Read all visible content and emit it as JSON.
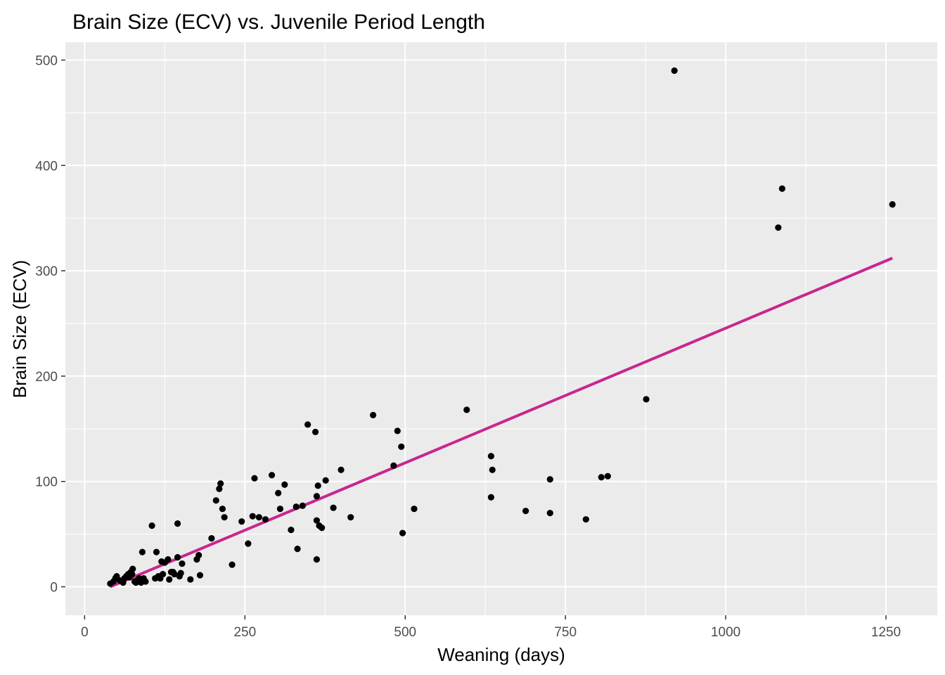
{
  "chart_data": {
    "type": "scatter",
    "title": "Brain Size (ECV) vs. Juvenile Period Length",
    "xlabel": "Weaning (days)",
    "ylabel": "Brain Size (ECV)",
    "xlim": [
      -30,
      1330
    ],
    "ylim": [
      -27,
      517
    ],
    "xticks": [
      0,
      250,
      500,
      750,
      1000,
      1250
    ],
    "yticks": [
      0,
      100,
      200,
      300,
      400,
      500
    ],
    "xtick_labels": [
      "0",
      "250",
      "500",
      "750",
      "1000",
      "1250"
    ],
    "ytick_labels": [
      "0",
      "100",
      "200",
      "300",
      "400",
      "500"
    ],
    "grid": true,
    "legend": "none",
    "colors": {
      "panel_background": "#ebebeb",
      "grid_major": "#ffffff",
      "points": "#000000",
      "fit_line": "#c8268f"
    },
    "series": [
      {
        "type": "scatter",
        "x": [
          40,
          45,
          48,
          50,
          55,
          60,
          62,
          65,
          68,
          70,
          72,
          74,
          75,
          78,
          80,
          82,
          85,
          88,
          90,
          90,
          92,
          95,
          105,
          110,
          112,
          115,
          118,
          120,
          122,
          125,
          130,
          132,
          135,
          138,
          140,
          145,
          145,
          148,
          150,
          152,
          165,
          175,
          178,
          180,
          198,
          205,
          210,
          212,
          215,
          218,
          230,
          245,
          255,
          262,
          265,
          272,
          282,
          292,
          302,
          305,
          312,
          322,
          330,
          332,
          340,
          348,
          360,
          362,
          362,
          362,
          364,
          366,
          370,
          376,
          388,
          400,
          415,
          450,
          482,
          488,
          494,
          496,
          514,
          596,
          634,
          634,
          636,
          688,
          726,
          726,
          782,
          806,
          816,
          876,
          920,
          1082,
          1088,
          1260
        ],
        "y": [
          3,
          5,
          8,
          10,
          6,
          4,
          8,
          10,
          12,
          9,
          14,
          12,
          17,
          5,
          4,
          6,
          8,
          4,
          33,
          6,
          8,
          5,
          58,
          8,
          33,
          10,
          8,
          24,
          12,
          23,
          26,
          7,
          14,
          14,
          12,
          60,
          28,
          10,
          13,
          22,
          7,
          26,
          30,
          11,
          46,
          82,
          93,
          98,
          74,
          66,
          21,
          62,
          41,
          67,
          103,
          66,
          64,
          106,
          89,
          74,
          97,
          54,
          76,
          36,
          77,
          154,
          147,
          26,
          63,
          86,
          96,
          58,
          56,
          101,
          75,
          111,
          66,
          163,
          115,
          148,
          133,
          51,
          74,
          168,
          124,
          85,
          111,
          72,
          102,
          70,
          64,
          104,
          105,
          178,
          490,
          341,
          378,
          363
        ]
      },
      {
        "type": "line",
        "x": [
          40,
          1260
        ],
        "y": [
          0,
          312
        ]
      }
    ]
  }
}
